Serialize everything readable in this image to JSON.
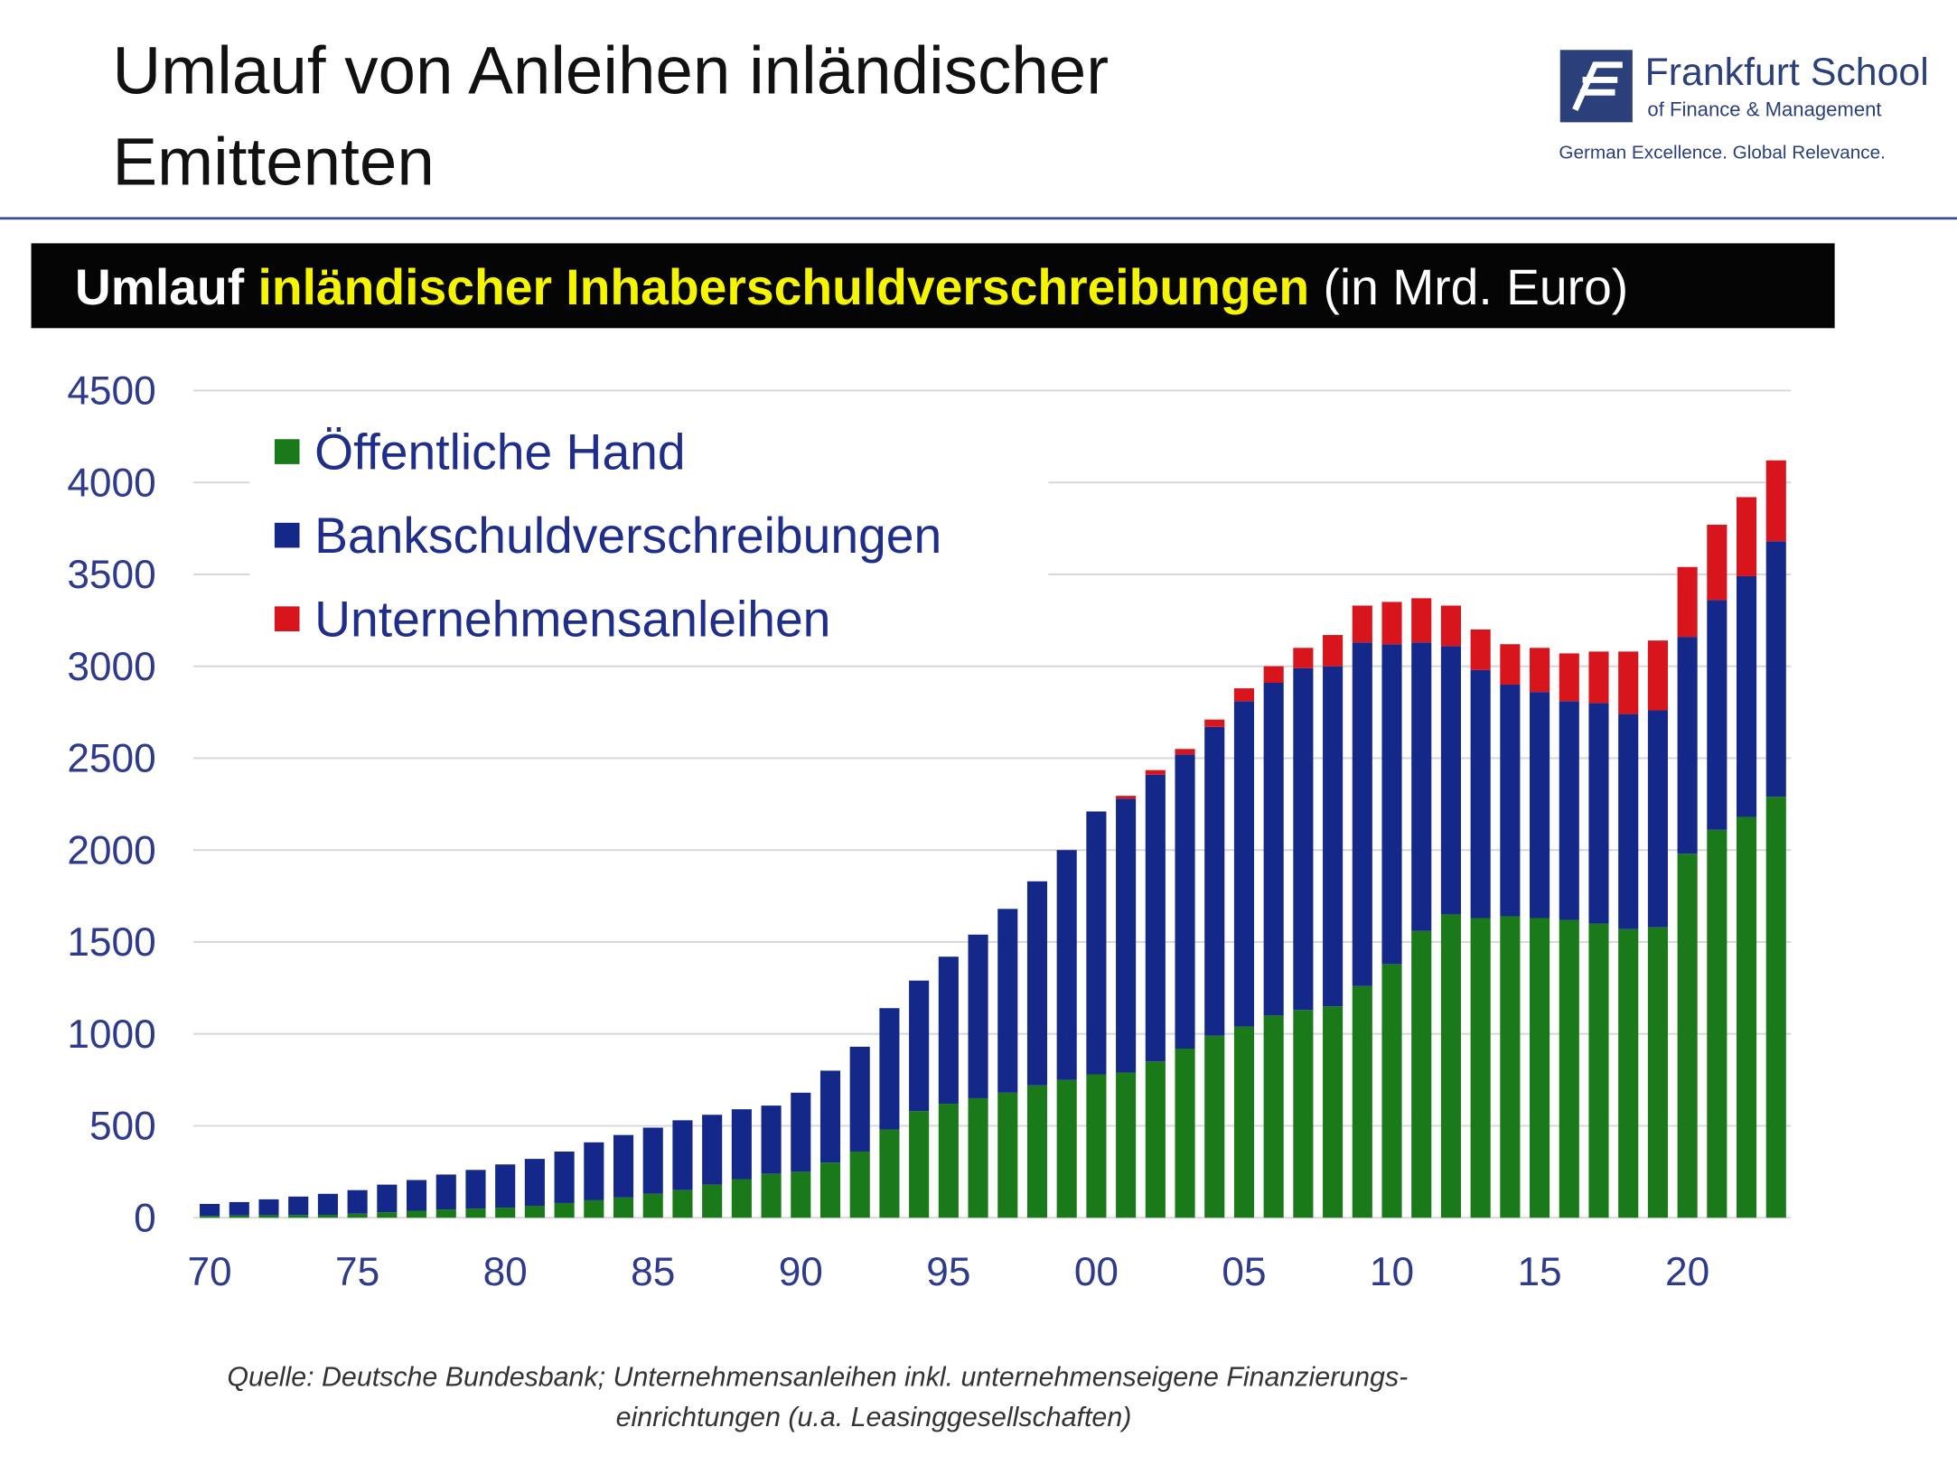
{
  "header": {
    "title": [
      "Umlauf von Anleihen inländischer",
      "Emittenten"
    ],
    "logo": {
      "name": "Frankfurt School",
      "subtitle": "of Finance & Management",
      "tagline": "German Excellence. Global Relevance."
    }
  },
  "chart_data": {
    "type": "stacked-bar",
    "title": [
      "Umlauf",
      "inländischer Inhaberschuldverschreibungen",
      "(in Mrd. Euro)"
    ],
    "categories": [
      "70",
      null,
      null,
      null,
      null,
      "75",
      null,
      null,
      null,
      null,
      "80",
      null,
      null,
      null,
      null,
      "85",
      null,
      null,
      null,
      null,
      "90",
      null,
      null,
      null,
      null,
      "95",
      null,
      null,
      null,
      null,
      "00",
      null,
      null,
      null,
      null,
      "05",
      null,
      null,
      null,
      null,
      "10",
      null,
      null,
      null,
      null,
      "15",
      null,
      null,
      null,
      null,
      "20",
      null,
      null,
      null
    ],
    "series": [
      {
        "name": "Öffentliche Hand",
        "color": "#1a7a1a",
        "values": [
          10,
          12,
          14,
          15,
          16,
          22,
          30,
          38,
          45,
          50,
          55,
          65,
          80,
          95,
          110,
          130,
          150,
          180,
          210,
          240,
          250,
          300,
          360,
          480,
          580,
          620,
          650,
          680,
          720,
          750,
          780,
          790,
          850,
          920,
          990,
          1040,
          1100,
          1130,
          1150,
          1260,
          1380,
          1560,
          1650,
          1630,
          1640,
          1630,
          1620,
          1600,
          1570,
          1580,
          1980,
          2110,
          2180,
          2290
        ]
      },
      {
        "name": "Bankschuldverschreibungen",
        "color": "#14288a",
        "values": [
          65,
          73,
          86,
          100,
          114,
          128,
          150,
          167,
          190,
          210,
          235,
          255,
          280,
          315,
          340,
          360,
          380,
          380,
          380,
          370,
          430,
          500,
          570,
          660,
          710,
          800,
          890,
          1000,
          1110,
          1250,
          1430,
          1490,
          1560,
          1600,
          1680,
          1770,
          1810,
          1860,
          1850,
          1870,
          1740,
          1570,
          1460,
          1350,
          1260,
          1230,
          1190,
          1200,
          1170,
          1180,
          1180,
          1250,
          1310,
          1390
        ]
      },
      {
        "name": "Unternehmensanleihen",
        "color": "#d8141c",
        "values": [
          0,
          0,
          0,
          0,
          0,
          0,
          0,
          0,
          0,
          0,
          0,
          0,
          0,
          0,
          0,
          0,
          0,
          0,
          0,
          0,
          0,
          0,
          0,
          0,
          0,
          0,
          0,
          0,
          0,
          0,
          0,
          15,
          25,
          30,
          40,
          70,
          90,
          110,
          170,
          200,
          230,
          240,
          220,
          220,
          220,
          240,
          260,
          280,
          340,
          380,
          380,
          410,
          430,
          440
        ]
      }
    ],
    "ylim": [
      0,
      4500
    ],
    "yticks": [
      0,
      500,
      1000,
      1500,
      2000,
      2500,
      3000,
      3500,
      4000,
      4500
    ],
    "grid": true
  },
  "source": [
    "Quelle: Deutsche Bundesbank; Unternehmensanleihen inkl. unternehmenseigene Finanzierungs-",
    "einrichtungen (u.a. Leasinggesellschaften)"
  ]
}
